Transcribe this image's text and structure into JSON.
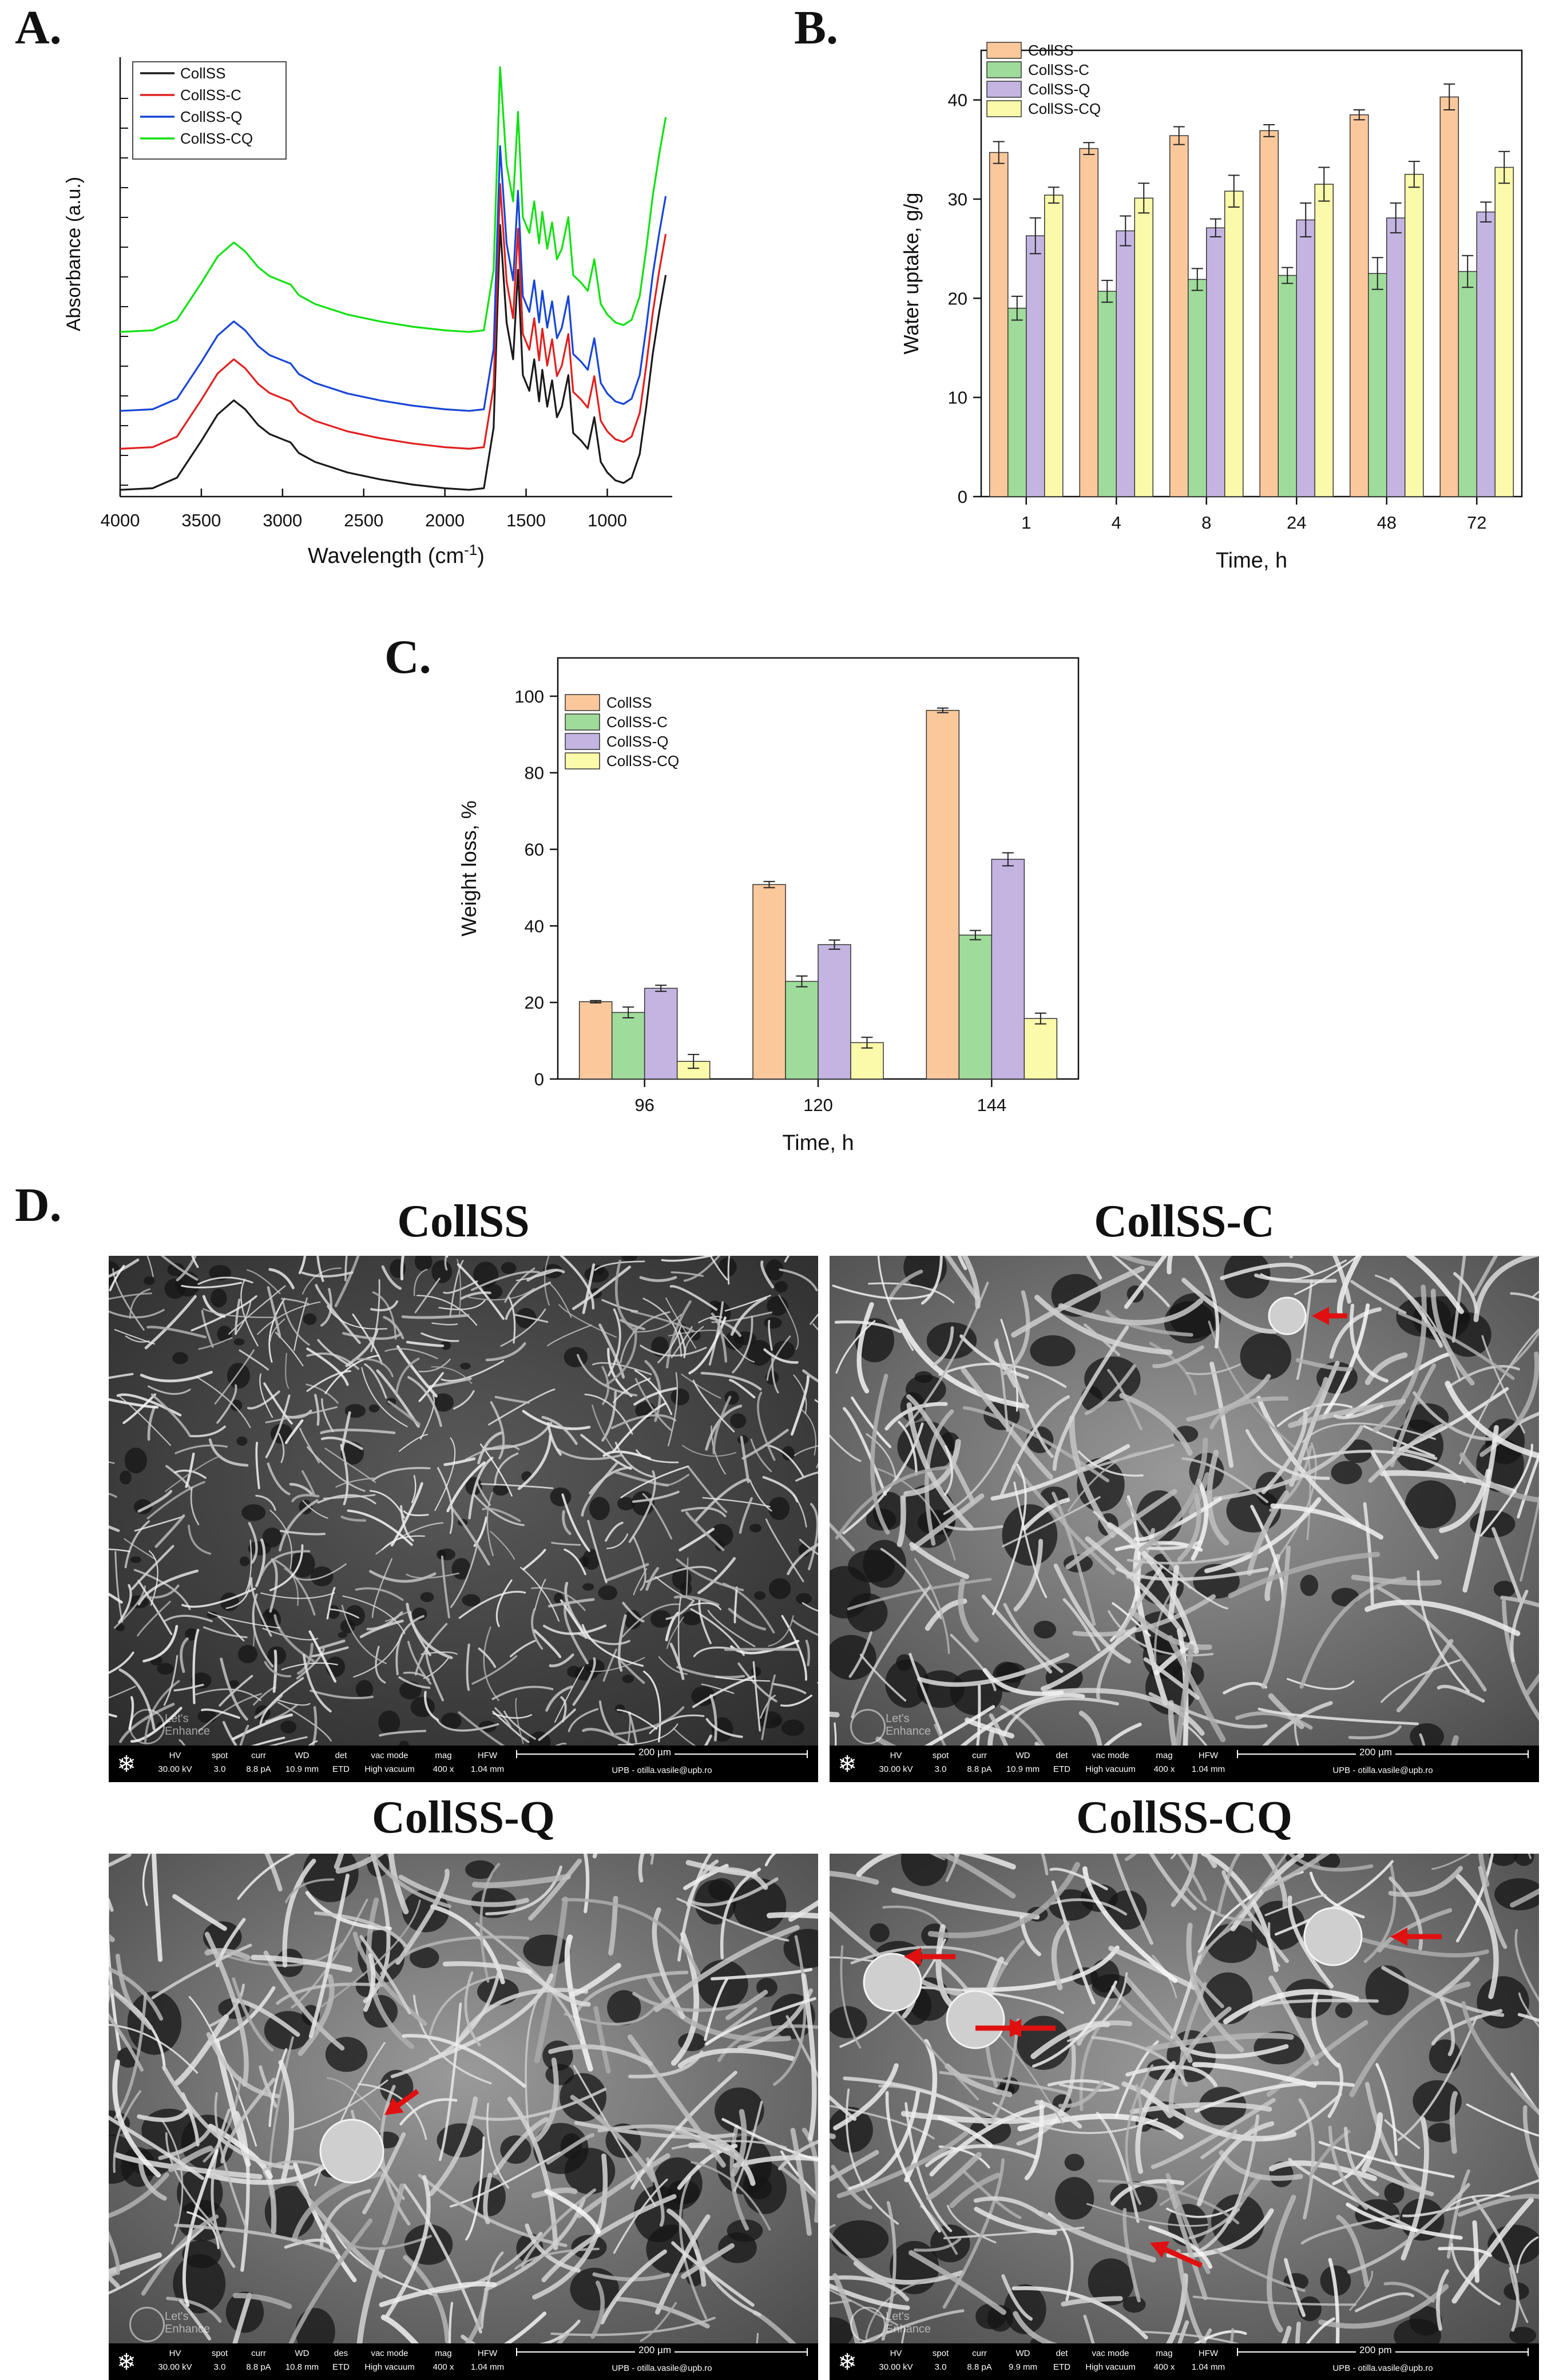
{
  "labels": {
    "A": "A.",
    "B": "B.",
    "C": "C.",
    "D": "D."
  },
  "chart_data": [
    {
      "id": "A",
      "type": "line",
      "xlabel": "Wavelength (cm",
      "xlabel_sup": "-1",
      "xlabel_close": ")",
      "ylabel": "Absorbance (a.u.)",
      "xlim": [
        4000,
        600
      ],
      "x_ticks": [
        "4000",
        "3500",
        "3000",
        "2500",
        "2000",
        "1500",
        "1000"
      ],
      "x_tick_values": [
        4000,
        3500,
        3000,
        2500,
        2000,
        1500,
        1000
      ],
      "legend_position": "top-left",
      "series": [
        {
          "name": "CollSS",
          "color": "#1a1a1a",
          "offset": 0
        },
        {
          "name": "CollSS-C",
          "color": "#e02020",
          "offset": 0.78
        },
        {
          "name": "CollSS-Q",
          "color": "#1846d6",
          "offset": 1.5
        },
        {
          "name": "CollSS-CQ",
          "color": "#12e012",
          "offset": 3.0
        }
      ]
    },
    {
      "id": "B",
      "type": "bar",
      "xlabel": "Time, h",
      "ylabel": "Water uptake, g/g",
      "ylim": [
        0,
        45
      ],
      "y_ticks": [
        "0",
        "10",
        "20",
        "30",
        "40"
      ],
      "y_tick_values": [
        0,
        10,
        20,
        30,
        40
      ],
      "categories": [
        "1",
        "4",
        "8",
        "24",
        "48",
        "72"
      ],
      "legend_position": "top-left",
      "series": [
        {
          "name": "CollSS",
          "color": "#fbc89c",
          "values": [
            34.7,
            35.1,
            36.4,
            36.9,
            38.5,
            40.3
          ],
          "errors": [
            1.1,
            0.6,
            0.9,
            0.6,
            0.5,
            1.3
          ]
        },
        {
          "name": "CollSS-C",
          "color": "#9fdb9a",
          "values": [
            19.0,
            20.7,
            21.9,
            22.3,
            22.5,
            22.7
          ],
          "errors": [
            1.2,
            1.1,
            1.1,
            0.8,
            1.6,
            1.6
          ]
        },
        {
          "name": "CollSS-Q",
          "color": "#c4b4e2",
          "values": [
            26.3,
            26.8,
            27.1,
            27.9,
            28.1,
            28.7
          ],
          "errors": [
            1.8,
            1.5,
            0.9,
            1.7,
            1.5,
            1.0
          ]
        },
        {
          "name": "CollSS-CQ",
          "color": "#fbfaaa",
          "values": [
            30.4,
            30.1,
            30.8,
            31.5,
            32.5,
            33.2
          ],
          "errors": [
            0.8,
            1.5,
            1.6,
            1.7,
            1.3,
            1.6
          ]
        }
      ]
    },
    {
      "id": "C",
      "type": "bar",
      "xlabel": "Time, h",
      "ylabel": "Weight loss, %",
      "ylim": [
        0,
        110
      ],
      "y_ticks": [
        "0",
        "20",
        "40",
        "60",
        "80",
        "100"
      ],
      "y_tick_values": [
        0,
        20,
        40,
        60,
        80,
        100
      ],
      "categories": [
        "96",
        "120",
        "144"
      ],
      "legend_position": "top-left",
      "series": [
        {
          "name": "CollSS",
          "color": "#fbc89c",
          "values": [
            20.2,
            50.8,
            96.3
          ],
          "errors": [
            0.3,
            0.8,
            0.6
          ]
        },
        {
          "name": "CollSS-C",
          "color": "#9fdb9a",
          "values": [
            17.4,
            25.5,
            37.6
          ],
          "errors": [
            1.4,
            1.4,
            1.2
          ]
        },
        {
          "name": "CollSS-Q",
          "color": "#c4b4e2",
          "values": [
            23.7,
            35.1,
            57.4
          ],
          "errors": [
            0.8,
            1.2,
            1.7
          ]
        },
        {
          "name": "CollSS-CQ",
          "color": "#fbfaaa",
          "values": [
            4.6,
            9.5,
            15.8
          ],
          "errors": [
            1.8,
            1.4,
            1.4
          ]
        }
      ]
    }
  ],
  "sem": [
    {
      "title": "CollSS",
      "hv": "30.00 kV",
      "spot": "3.0",
      "curr": "8.8 pA",
      "wd": "10.9 mm",
      "det": "ETD",
      "vac": "High vacuum",
      "mag": "400 x",
      "hfw": "1.04 mm",
      "scale": "200 µm",
      "owner": "UPB - otilla.vasile@upb.ro",
      "arrows": 0
    },
    {
      "title": "CollSS-C",
      "hv": "30.00 kV",
      "spot": "3.0",
      "curr": "8.8 pA",
      "wd": "10.9 mm",
      "det": "ETD",
      "vac": "High vacuum",
      "mag": "400 x",
      "hfw": "1.04 mm",
      "scale": "200 µm",
      "owner": "UPB - otilla.vasile@upb.ro",
      "arrows": 1
    },
    {
      "title": "CollSS-Q",
      "hv": "30.00 kV",
      "spot": "3.0",
      "curr": "8.8 pA",
      "wd": "10.8 mm",
      "det": "ETD",
      "vac": "High vacuum",
      "mag": "400 x",
      "hfw": "1.04 mm",
      "scale": "200 µm",
      "owner": "UPB - otilla.vasile@upb.ro",
      "arrows": 1
    },
    {
      "title": "CollSS-CQ",
      "hv": "30.00 kV",
      "spot": "3.0",
      "curr": "8.8 pA",
      "wd": "9.9 mm",
      "det": "ETD",
      "vac": "High vacuum",
      "mag": "400 x",
      "hfw": "1.04 mm",
      "scale": "200 pm",
      "owner": "UPB - otilla.vasile@upb.ro",
      "arrows": 5
    }
  ],
  "databar_headers": {
    "hv": "HV",
    "spot": "spot",
    "curr": "curr",
    "wd": "WD",
    "det": "det",
    "det_alt": "des",
    "vac": "vac mode",
    "mag": "mag",
    "hfw": "HFW"
  },
  "watermark": {
    "line1": "Let's",
    "line2": "Enhance"
  },
  "colors": {
    "arrow": "#e01010"
  }
}
